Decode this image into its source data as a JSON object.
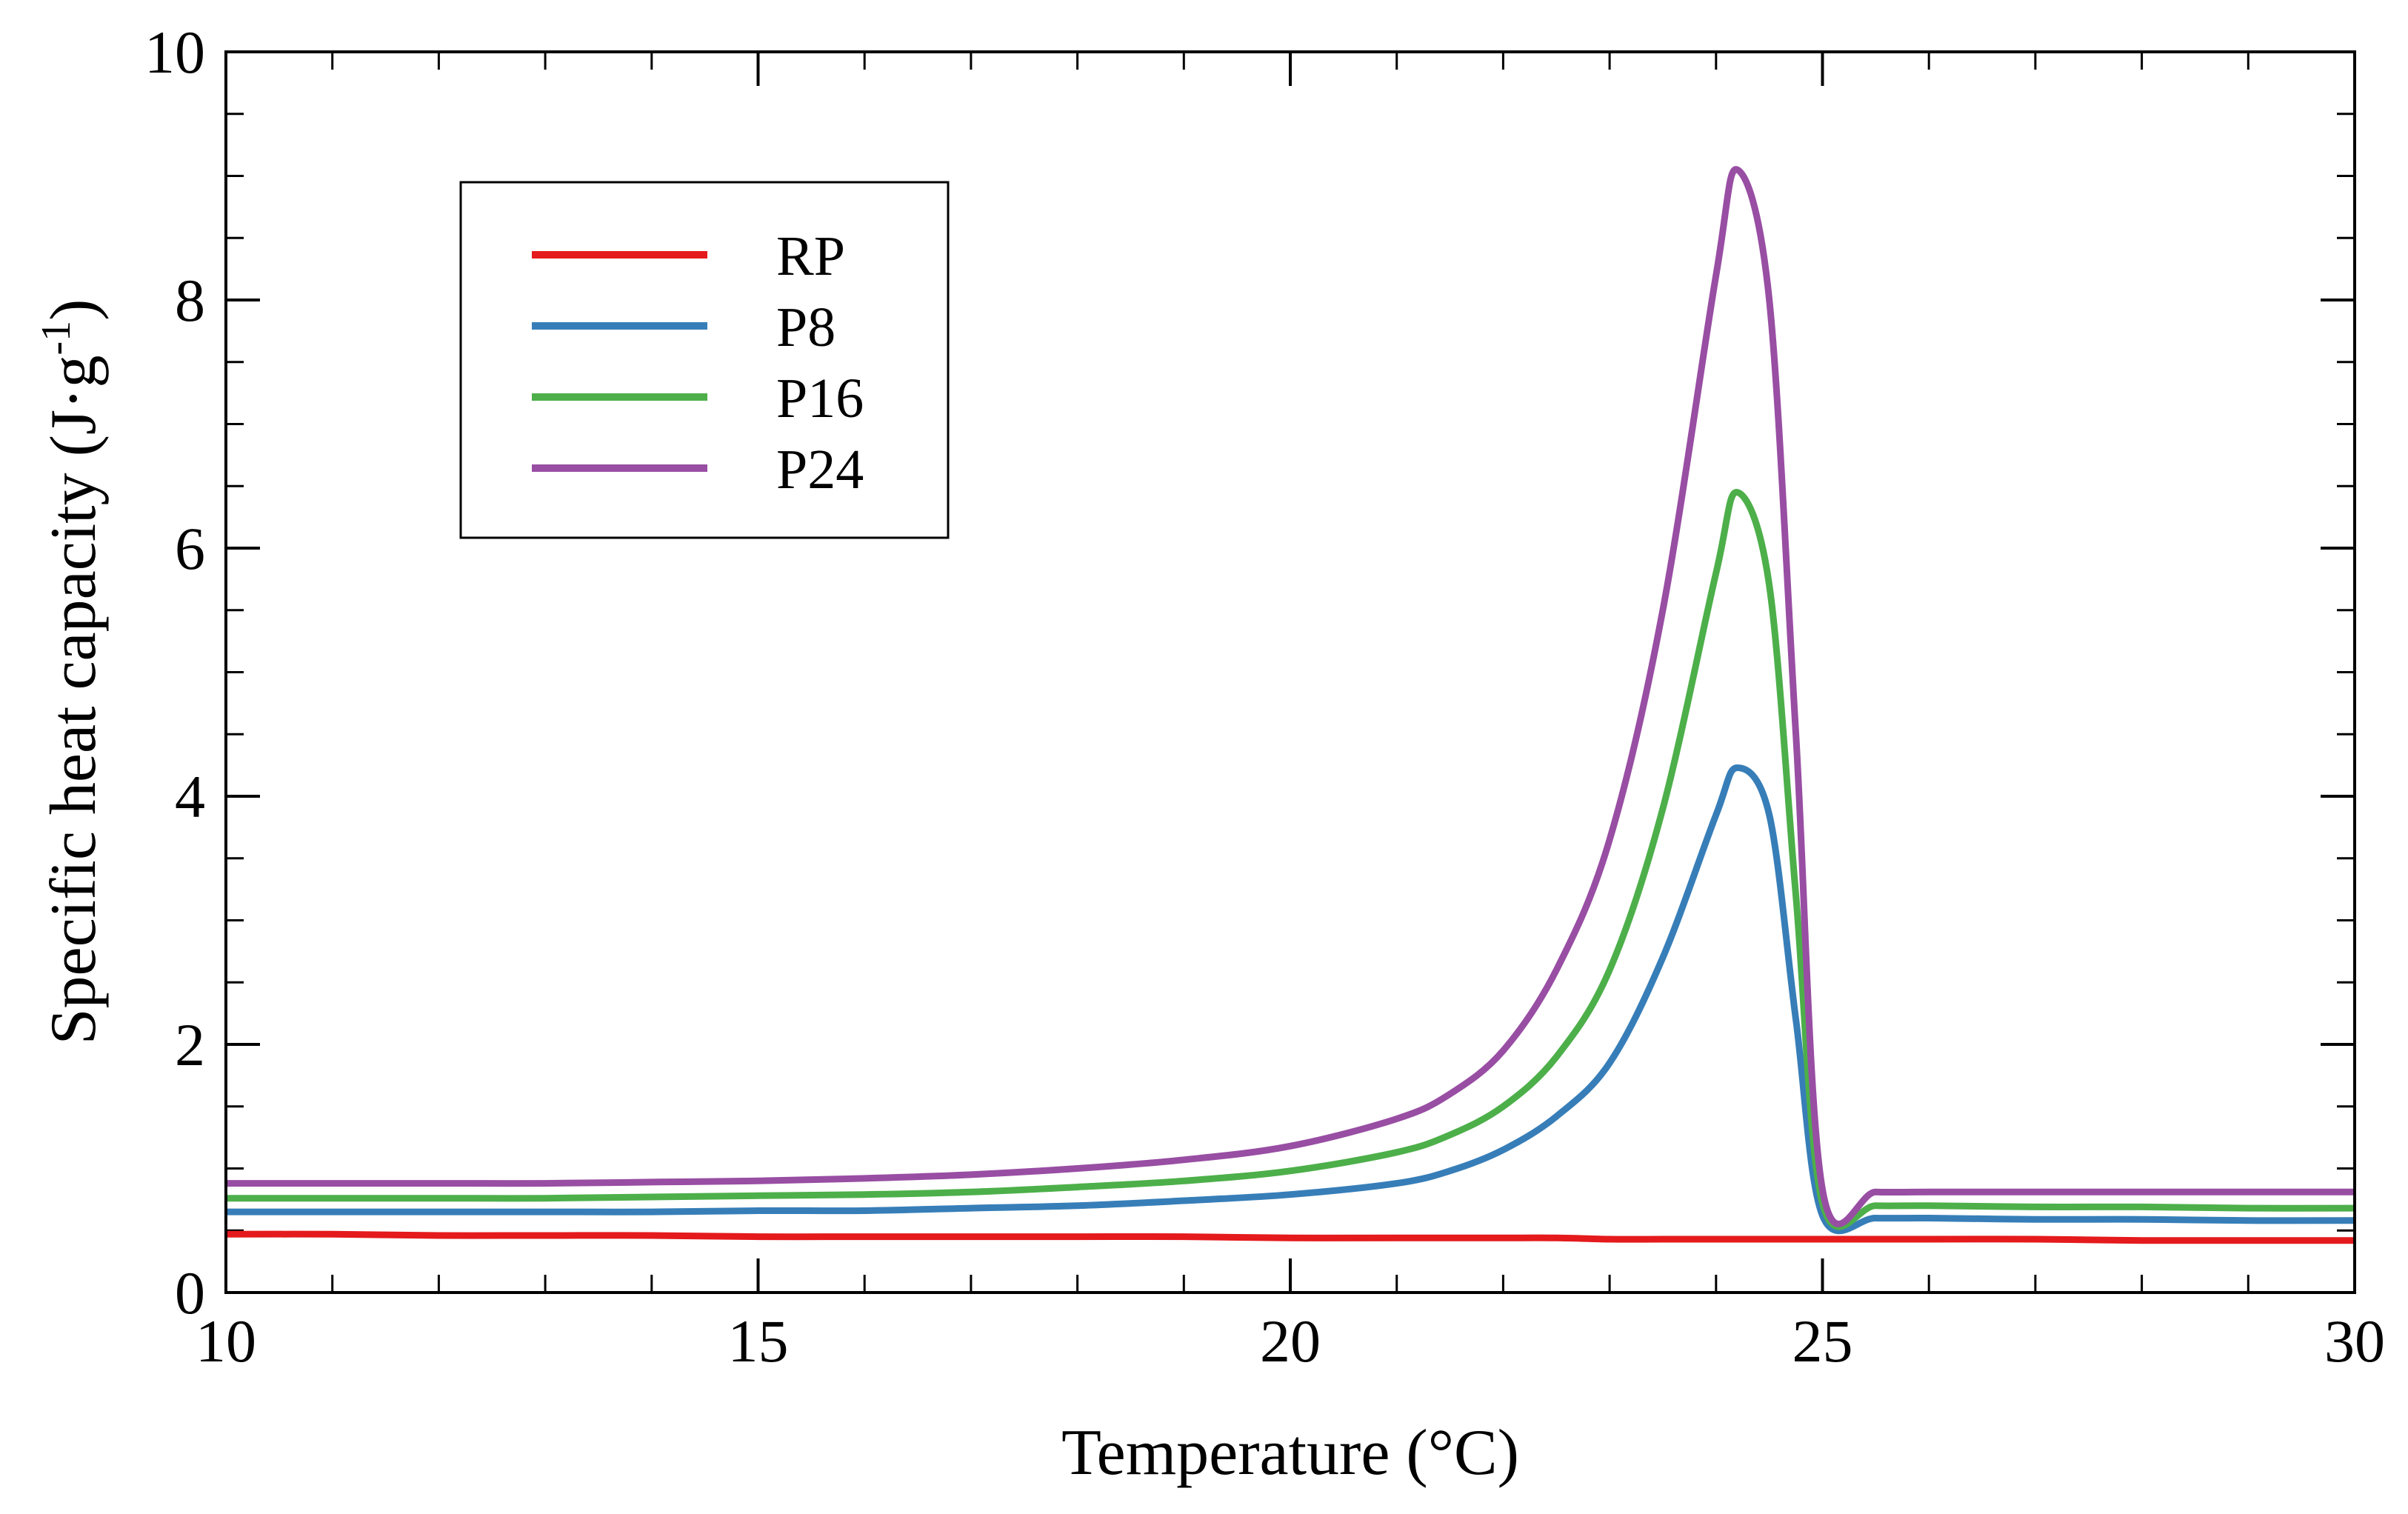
{
  "chart_data": {
    "type": "line",
    "title": "",
    "xlabel": "Temperature (°C)",
    "ylabel_main": "Specific heat capacity (J·g",
    "ylabel_sup": "-1",
    "ylabel_close": ")",
    "xlim": [
      10,
      30
    ],
    "ylim": [
      0,
      10
    ],
    "x_ticks": [
      10,
      15,
      20,
      25,
      30
    ],
    "x_tick_labels": [
      "10",
      "15",
      "20",
      "25",
      "30"
    ],
    "y_ticks": [
      0,
      2,
      4,
      6,
      8,
      10
    ],
    "y_tick_labels": [
      "0",
      "2",
      "4",
      "6",
      "8",
      "10"
    ],
    "x_minor_step": 1,
    "y_minor_step": 0.5,
    "grid": false,
    "legend_position": "top-left",
    "x": [
      10,
      11,
      12,
      13,
      14,
      15,
      16,
      17,
      18,
      19,
      20,
      21,
      21.5,
      22,
      22.5,
      23,
      23.5,
      24,
      24.2,
      24.5,
      24.75,
      25,
      25.5,
      26,
      27,
      28,
      29,
      30
    ],
    "series": [
      {
        "name": "RP",
        "color": "#e41a1c",
        "values": [
          0.47,
          0.47,
          0.46,
          0.46,
          0.46,
          0.45,
          0.45,
          0.45,
          0.45,
          0.45,
          0.44,
          0.44,
          0.44,
          0.44,
          0.44,
          0.43,
          0.43,
          0.43,
          0.43,
          0.43,
          0.43,
          0.43,
          0.43,
          0.43,
          0.43,
          0.42,
          0.42,
          0.42
        ]
      },
      {
        "name": "P8",
        "color": "#377eb8",
        "values": [
          0.65,
          0.65,
          0.65,
          0.65,
          0.65,
          0.66,
          0.66,
          0.68,
          0.7,
          0.74,
          0.79,
          0.88,
          0.98,
          1.15,
          1.42,
          1.85,
          2.7,
          3.85,
          4.23,
          3.85,
          2.2,
          0.62,
          0.6,
          0.6,
          0.59,
          0.59,
          0.58,
          0.58
        ]
      },
      {
        "name": "P16",
        "color": "#4daf4a",
        "values": [
          0.76,
          0.76,
          0.76,
          0.76,
          0.77,
          0.78,
          0.79,
          0.81,
          0.85,
          0.9,
          0.98,
          1.13,
          1.27,
          1.5,
          1.9,
          2.6,
          3.9,
          5.8,
          6.45,
          5.7,
          3.2,
          0.72,
          0.7,
          0.7,
          0.69,
          0.69,
          0.68,
          0.68
        ]
      },
      {
        "name": "P24",
        "color": "#984ea3",
        "values": [
          0.88,
          0.88,
          0.88,
          0.88,
          0.89,
          0.9,
          0.92,
          0.95,
          1.0,
          1.07,
          1.18,
          1.4,
          1.6,
          1.95,
          2.6,
          3.65,
          5.5,
          8.2,
          9.05,
          8.0,
          4.5,
          0.83,
          0.81,
          0.81,
          0.81,
          0.81,
          0.81,
          0.81
        ]
      }
    ]
  }
}
